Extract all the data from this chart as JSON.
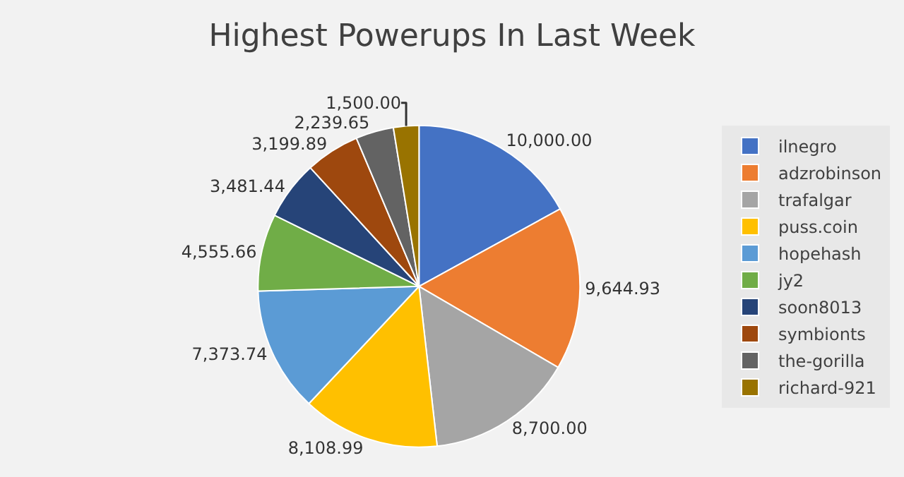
{
  "chart_data": {
    "type": "pie",
    "title": "Highest Powerups In Last Week",
    "categories": [
      "ilnegro",
      "adzrobinson",
      "trafalgar",
      "puss.coin",
      "hopehash",
      "jy2",
      "soon8013",
      "symbionts",
      "the-gorilla",
      "richard-921"
    ],
    "values": [
      10000.0,
      9644.93,
      8700.0,
      8108.99,
      7373.74,
      4555.66,
      3481.44,
      3199.89,
      2239.65,
      1500.0
    ],
    "value_labels": [
      "10,000.00",
      "9,644.93",
      "8,700.00",
      "8,108.99",
      "7,373.74",
      "4,555.66",
      "3,481.44",
      "3,199.89",
      "2,239.65",
      "1,500.00"
    ],
    "colors": [
      "#4472c4",
      "#ed7d31",
      "#a5a5a5",
      "#ffc000",
      "#5b9bd5",
      "#70ad47",
      "#264478",
      "#9e480e",
      "#636363",
      "#997300"
    ],
    "legend": "right"
  }
}
